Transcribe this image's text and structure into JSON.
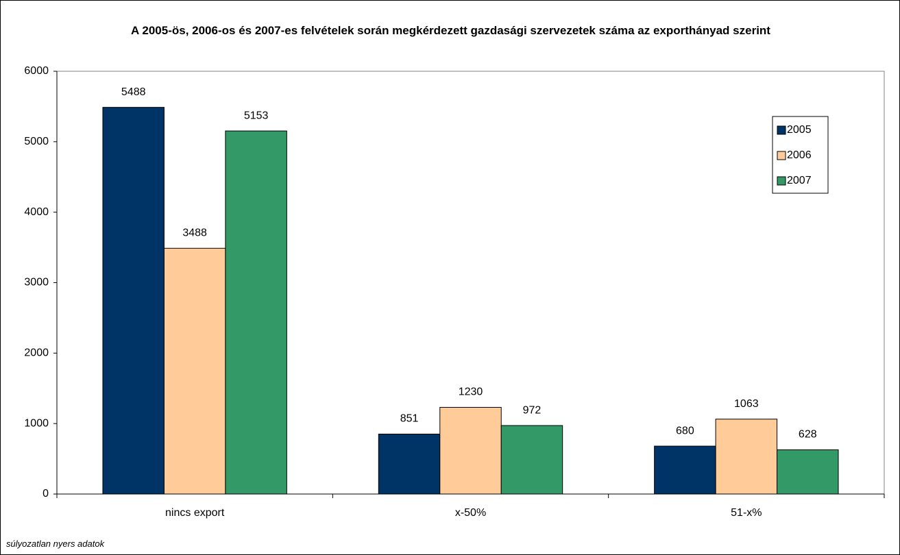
{
  "chart_data": {
    "type": "bar",
    "title": "A 2005-ös, 2006-os és 2007-es felvételek során megkérdezett gazdasági szervezetek száma az exporthányad szerint",
    "footnote": "súlyozatlan nyers adatok",
    "categories": [
      "nincs export",
      "x-50%",
      "51-x%"
    ],
    "series": [
      {
        "name": "2005",
        "color": "#003366",
        "values": [
          5488,
          851,
          680
        ]
      },
      {
        "name": "2006",
        "color": "#FFCC99",
        "values": [
          3488,
          1230,
          1063
        ]
      },
      {
        "name": "2007",
        "color": "#339966",
        "values": [
          5153,
          972,
          628
        ]
      }
    ],
    "ylim": [
      0,
      6000
    ],
    "yticks": [
      0,
      1000,
      2000,
      3000,
      4000,
      5000,
      6000
    ],
    "grid": false,
    "legend": "right"
  }
}
